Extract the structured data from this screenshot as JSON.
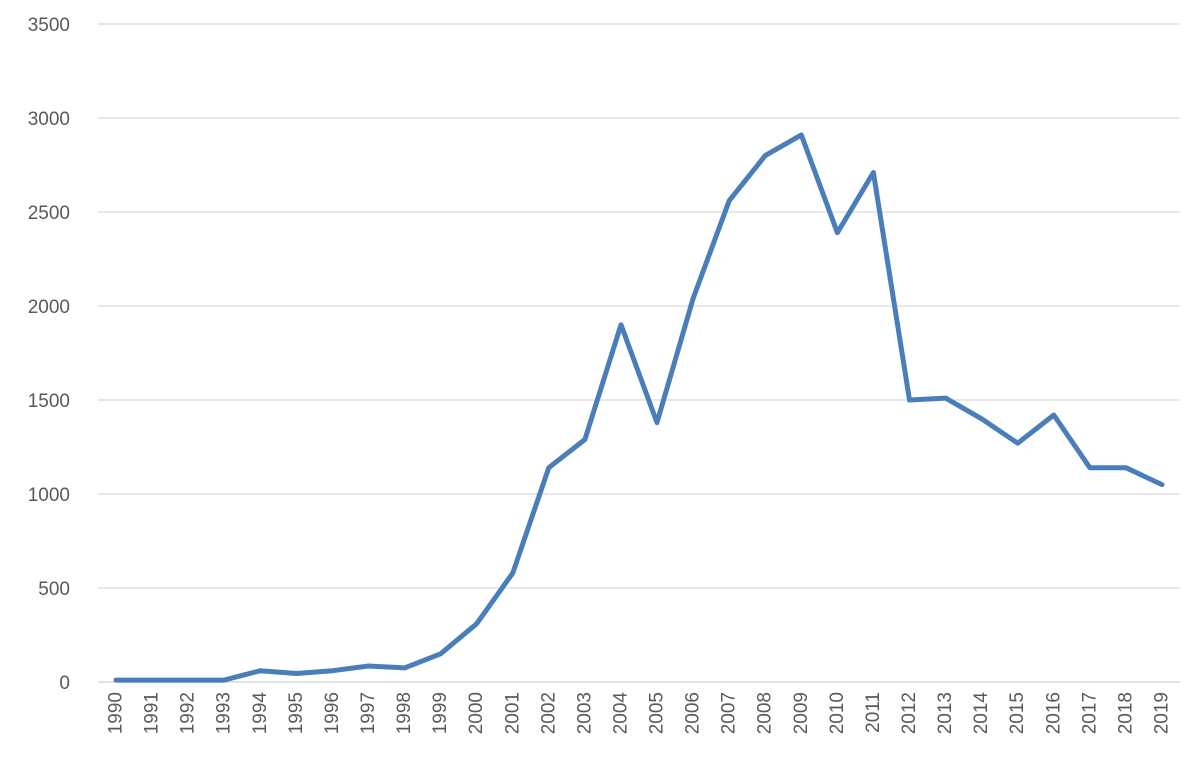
{
  "chart_data": {
    "type": "line",
    "title": "",
    "xlabel": "",
    "ylabel": "",
    "categories": [
      "1990",
      "1991",
      "1992",
      "1993",
      "1994",
      "1995",
      "1996",
      "1997",
      "1998",
      "1999",
      "2000",
      "2001",
      "2002",
      "2003",
      "2004",
      "2005",
      "2006",
      "2007",
      "2008",
      "2009",
      "2010",
      "2011",
      "2012",
      "2013",
      "2014",
      "2015",
      "2016",
      "2017",
      "2018",
      "2019"
    ],
    "series": [
      {
        "values": [
          10,
          10,
          10,
          10,
          60,
          45,
          60,
          85,
          75,
          150,
          310,
          580,
          1140,
          1290,
          1900,
          1380,
          2040,
          2560,
          2800,
          2910,
          2390,
          2710,
          1500,
          1510,
          1400,
          1270,
          1420,
          1140,
          1140,
          1050
        ]
      }
    ],
    "ylim": [
      0,
      3500
    ],
    "yticks": [
      0,
      500,
      1000,
      1500,
      2000,
      2500,
      3000,
      3500
    ],
    "grid": true,
    "legend": "none",
    "colors": {
      "series": "#4a7ebb",
      "grid": "#d9d9d9",
      "text": "#595959"
    }
  }
}
